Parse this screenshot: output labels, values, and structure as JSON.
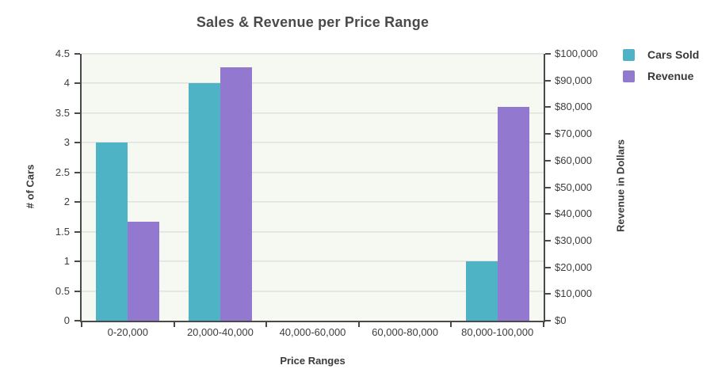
{
  "chart_data": {
    "type": "bar",
    "title": "Sales & Revenue per Price Range",
    "xlabel": "Price Ranges",
    "ylabel_left": "# of Cars",
    "ylabel_right": "Revenue in Dollars",
    "categories": [
      "0-20,000",
      "20,000-40,000",
      "40,000-60,000",
      "60,000-80,000",
      "80,000-100,000"
    ],
    "series": [
      {
        "name": "Cars Sold",
        "axis": "left",
        "color": "#4fb3c6",
        "values": [
          3,
          4,
          0,
          0,
          1
        ]
      },
      {
        "name": "Revenue",
        "axis": "right",
        "color": "#9278ce",
        "values": [
          37000,
          95000,
          0,
          0,
          80000
        ]
      }
    ],
    "axis_left": {
      "min": 0,
      "max": 4.5,
      "step": 0.5,
      "prefix": ""
    },
    "axis_right": {
      "min": 0,
      "max": 100000,
      "step": 10000,
      "prefix": "$"
    },
    "grid": true,
    "legend_position": "top-right",
    "colors": {
      "plot_background": "#f6f9f1",
      "gridline": "#dededa",
      "axis_line": "#4a4a4a",
      "text": "#3d3d3d",
      "title": "#4a4a4a"
    }
  }
}
